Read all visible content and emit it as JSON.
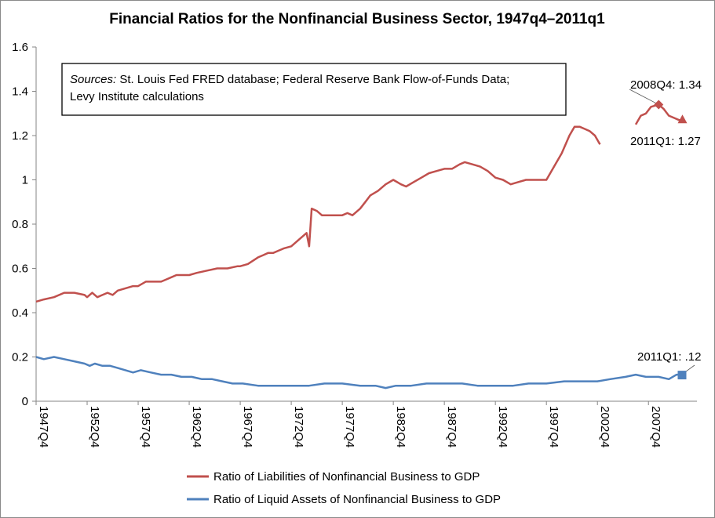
{
  "chart_data": {
    "type": "line",
    "title": "Financial Ratios for the Nonfinancial Business Sector, 1947q4–2011q1",
    "source_note": {
      "label": "Sources:",
      "text_line1": " St. Louis Fed FRED database; Federal Reserve Bank Flow-of-Funds Data;",
      "text_line2": "Levy Institute calculations"
    },
    "xlim": [
      1947.75,
      2011.0
    ],
    "ylim": [
      0,
      1.6
    ],
    "y_ticks": [
      0,
      0.2,
      0.4,
      0.6,
      0.8,
      1,
      1.2,
      1.4,
      1.6
    ],
    "y_tick_labels": [
      "0",
      "0.2",
      "0.4",
      "0.6",
      "0.8",
      "1",
      "1.2",
      "1.4",
      "1.6"
    ],
    "x_ticks": [
      1947.75,
      1952.75,
      1957.75,
      1962.75,
      1967.75,
      1972.75,
      1977.75,
      1982.75,
      1987.75,
      1992.75,
      1997.75,
      2002.75,
      2007.75
    ],
    "x_tick_labels": [
      "1947Q4",
      "1952Q4",
      "1957Q4",
      "1962Q4",
      "1967Q4",
      "1972Q4",
      "1977Q4",
      "1982Q4",
      "1987Q4",
      "1992Q4",
      "1997Q4",
      "2002Q4",
      "2007Q4"
    ],
    "grid": false,
    "legend_position": "bottom",
    "series": [
      {
        "name": "Ratio of Liabilities of Nonfinancial Business to GDP",
        "color": "#c0504d",
        "points": [
          [
            1947.75,
            0.45
          ],
          [
            1948.5,
            0.46
          ],
          [
            1949.5,
            0.47
          ],
          [
            1950.5,
            0.49
          ],
          [
            1951.5,
            0.49
          ],
          [
            1952.5,
            0.48
          ],
          [
            1952.75,
            0.47
          ],
          [
            1953.25,
            0.49
          ],
          [
            1953.75,
            0.47
          ],
          [
            1954.25,
            0.48
          ],
          [
            1954.75,
            0.49
          ],
          [
            1955.25,
            0.48
          ],
          [
            1955.75,
            0.5
          ],
          [
            1956.5,
            0.51
          ],
          [
            1957.25,
            0.52
          ],
          [
            1957.75,
            0.52
          ],
          [
            1958.5,
            0.54
          ],
          [
            1959.25,
            0.54
          ],
          [
            1960.0,
            0.54
          ],
          [
            1960.5,
            0.55
          ],
          [
            1961.0,
            0.56
          ],
          [
            1961.5,
            0.57
          ],
          [
            1962.0,
            0.57
          ],
          [
            1962.75,
            0.57
          ],
          [
            1963.5,
            0.58
          ],
          [
            1964.5,
            0.59
          ],
          [
            1965.5,
            0.6
          ],
          [
            1966.5,
            0.6
          ],
          [
            1967.5,
            0.61
          ],
          [
            1967.75,
            0.61
          ],
          [
            1968.5,
            0.62
          ],
          [
            1969.5,
            0.65
          ],
          [
            1970.0,
            0.66
          ],
          [
            1970.5,
            0.67
          ],
          [
            1971.0,
            0.67
          ],
          [
            1971.5,
            0.68
          ],
          [
            1972.0,
            0.69
          ],
          [
            1972.75,
            0.7
          ],
          [
            1973.5,
            0.73
          ],
          [
            1974.25,
            0.76
          ],
          [
            1974.5,
            0.7
          ],
          [
            1974.75,
            0.87
          ],
          [
            1975.25,
            0.86
          ],
          [
            1975.75,
            0.84
          ],
          [
            1976.25,
            0.84
          ],
          [
            1977.0,
            0.84
          ],
          [
            1977.75,
            0.84
          ],
          [
            1978.25,
            0.85
          ],
          [
            1978.75,
            0.84
          ],
          [
            1979.5,
            0.87
          ],
          [
            1980.0,
            0.9
          ],
          [
            1980.5,
            0.93
          ],
          [
            1981.25,
            0.95
          ],
          [
            1982.0,
            0.98
          ],
          [
            1982.75,
            1.0
          ],
          [
            1983.5,
            0.98
          ],
          [
            1984.0,
            0.97
          ],
          [
            1984.75,
            0.99
          ],
          [
            1985.5,
            1.01
          ],
          [
            1986.25,
            1.03
          ],
          [
            1987.0,
            1.04
          ],
          [
            1987.75,
            1.05
          ],
          [
            1988.5,
            1.05
          ],
          [
            1989.25,
            1.07
          ],
          [
            1989.75,
            1.08
          ],
          [
            1990.5,
            1.07
          ],
          [
            1991.25,
            1.06
          ],
          [
            1992.0,
            1.04
          ],
          [
            1992.75,
            1.01
          ],
          [
            1993.5,
            1.0
          ],
          [
            1994.25,
            0.98
          ],
          [
            1995.0,
            0.99
          ],
          [
            1995.75,
            1.0
          ],
          [
            1996.5,
            1.0
          ],
          [
            1997.25,
            1.0
          ],
          [
            1997.75,
            1.0
          ],
          [
            1998.5,
            1.06
          ],
          [
            1999.25,
            1.12
          ],
          [
            2000.0,
            1.2
          ],
          [
            2000.5,
            1.24
          ],
          [
            2001.0,
            1.24
          ],
          [
            2001.5,
            1.23
          ],
          [
            2002.0,
            1.22
          ],
          [
            2002.5,
            1.2
          ],
          [
            2003.0,
            1.16
          ],
          null,
          [
            2006.5,
            1.25
          ],
          [
            2007.0,
            1.29
          ],
          [
            2007.5,
            1.3
          ],
          [
            2008.0,
            1.33
          ],
          [
            2008.75,
            1.34
          ],
          [
            2009.25,
            1.32
          ],
          [
            2009.75,
            1.29
          ],
          [
            2010.25,
            1.28
          ],
          [
            2010.75,
            1.27
          ],
          [
            2011.0,
            1.27
          ]
        ]
      },
      {
        "name": "Ratio of Liquid Assets of Nonfinancial Business to GDP",
        "color": "#4f81bd",
        "points": [
          [
            1947.75,
            0.2
          ],
          [
            1948.5,
            0.19
          ],
          [
            1949.5,
            0.2
          ],
          [
            1950.5,
            0.19
          ],
          [
            1951.5,
            0.18
          ],
          [
            1952.5,
            0.17
          ],
          [
            1953.0,
            0.16
          ],
          [
            1953.5,
            0.17
          ],
          [
            1954.25,
            0.16
          ],
          [
            1955.0,
            0.16
          ],
          [
            1955.75,
            0.15
          ],
          [
            1956.5,
            0.14
          ],
          [
            1957.25,
            0.13
          ],
          [
            1958.0,
            0.14
          ],
          [
            1959.0,
            0.13
          ],
          [
            1960.0,
            0.12
          ],
          [
            1961.0,
            0.12
          ],
          [
            1962.0,
            0.11
          ],
          [
            1963.0,
            0.11
          ],
          [
            1964.0,
            0.1
          ],
          [
            1965.0,
            0.1
          ],
          [
            1966.0,
            0.09
          ],
          [
            1967.0,
            0.08
          ],
          [
            1968.0,
            0.08
          ],
          [
            1969.5,
            0.07
          ],
          [
            1971.0,
            0.07
          ],
          [
            1972.75,
            0.07
          ],
          [
            1974.5,
            0.07
          ],
          [
            1976.0,
            0.08
          ],
          [
            1977.75,
            0.08
          ],
          [
            1979.5,
            0.07
          ],
          [
            1981.0,
            0.07
          ],
          [
            1982.0,
            0.06
          ],
          [
            1983.0,
            0.07
          ],
          [
            1984.5,
            0.07
          ],
          [
            1986.0,
            0.08
          ],
          [
            1987.75,
            0.08
          ],
          [
            1989.5,
            0.08
          ],
          [
            1991.0,
            0.07
          ],
          [
            1992.75,
            0.07
          ],
          [
            1994.5,
            0.07
          ],
          [
            1996.0,
            0.08
          ],
          [
            1997.75,
            0.08
          ],
          [
            1999.5,
            0.09
          ],
          [
            2001.0,
            0.09
          ],
          [
            2002.75,
            0.09
          ],
          [
            2004.0,
            0.1
          ],
          [
            2005.5,
            0.11
          ],
          [
            2006.5,
            0.12
          ],
          [
            2007.5,
            0.11
          ],
          [
            2008.75,
            0.11
          ],
          [
            2009.75,
            0.1
          ],
          [
            2010.5,
            0.12
          ],
          [
            2011.0,
            0.12
          ]
        ]
      }
    ],
    "annotations": [
      {
        "text": "2008Q4: 1.34",
        "x": 2008.75,
        "y": 1.34,
        "series": 0,
        "marker": "diamond",
        "leader": true
      },
      {
        "text": "2011Q1: 1.27",
        "x": 2011.0,
        "y": 1.27,
        "series": 0,
        "marker": "triangle",
        "leader": false
      },
      {
        "text": "2011Q1: .12",
        "x": 2011.0,
        "y": 0.12,
        "series": 1,
        "marker": "square",
        "leader": true
      }
    ]
  }
}
